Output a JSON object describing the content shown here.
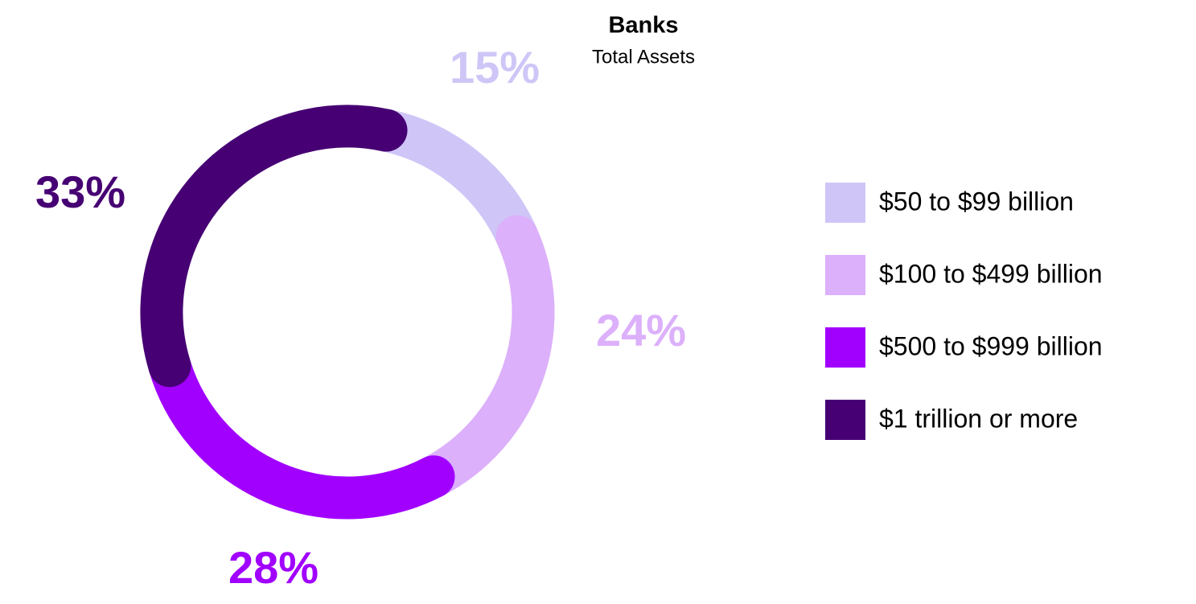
{
  "chart_data": {
    "type": "donut",
    "title": "Banks",
    "subtitle": "Total Assets",
    "categories": [
      "$50 to $99 billion",
      "$100 to $499 billion",
      "$500 to $999 billion",
      "$1 trillion or more"
    ],
    "values": [
      15,
      24,
      28,
      33
    ],
    "value_labels": [
      "15%",
      "24%",
      "28%",
      "33%"
    ],
    "colors": [
      "#cfc6f7",
      "#dcb0fb",
      "#a100ff",
      "#460073"
    ],
    "legend": "right"
  }
}
